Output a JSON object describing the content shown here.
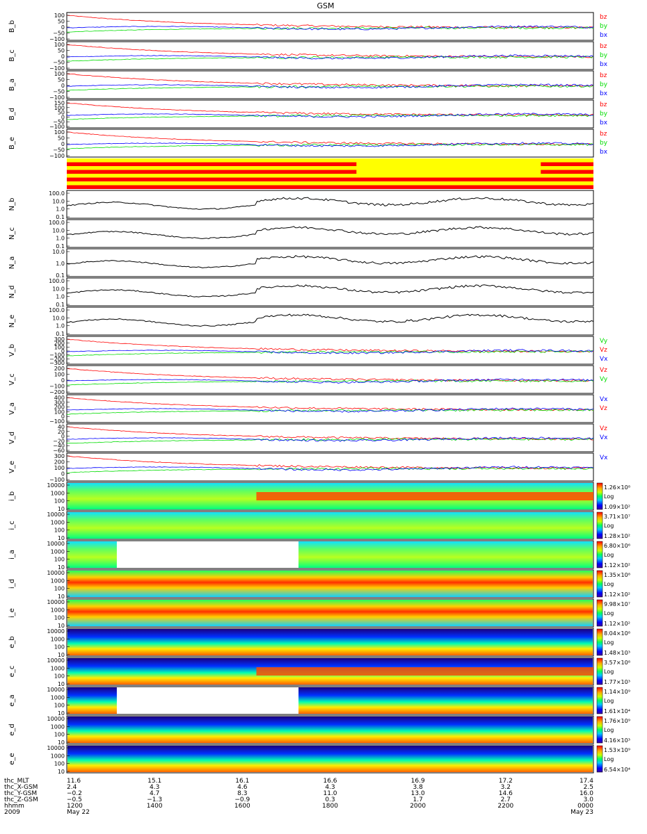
{
  "title": "GSM",
  "colors": {
    "bx": "#0000ff",
    "by": "#00dd00",
    "bz": "#ff0000",
    "flag_a": "#ffff00",
    "flag_b": "#ff0000"
  },
  "chart_data": {
    "type": "line",
    "x_range": [
      "2009-05-22 12:00",
      "2009-05-23 00:00"
    ],
    "panels": [
      {
        "label": "B_b",
        "kind": "vec3",
        "ticks": [
          "100",
          "50",
          "0",
          "−50",
          "−100"
        ],
        "legend": [
          "bz",
          "by",
          "bx"
        ]
      },
      {
        "label": "B_c",
        "kind": "vec3",
        "ticks": [
          "100",
          "50",
          "0",
          "−50",
          "−100"
        ],
        "legend": [
          "bz",
          "by",
          "bx"
        ]
      },
      {
        "label": "B_a",
        "kind": "vec3",
        "ticks": [
          "100",
          "50",
          "0",
          "−50",
          "−100"
        ],
        "legend": [
          "bz",
          "by",
          "bx"
        ]
      },
      {
        "label": "B_d",
        "kind": "vec3",
        "ticks": [
          "150",
          "100",
          "50",
          "0",
          "−50",
          "−100"
        ],
        "legend": [
          "bz",
          "by",
          "bx"
        ]
      },
      {
        "label": "B_e",
        "kind": "vec3",
        "ticks": [
          "100",
          "50",
          "0",
          "−50",
          "−100"
        ],
        "legend": [
          "bz",
          "by",
          "bx"
        ]
      },
      {
        "label": "",
        "kind": "flags"
      },
      {
        "label": "N_b",
        "kind": "density",
        "ticks": [
          "100.0",
          "10.0",
          "1.0",
          "0.1"
        ]
      },
      {
        "label": "N_c",
        "kind": "density",
        "ticks": [
          "100.0",
          "10.0",
          "1.0",
          "0.1"
        ]
      },
      {
        "label": "N_a",
        "kind": "density",
        "ticks": [
          "10.0",
          "1.0",
          "0.1"
        ]
      },
      {
        "label": "N_d",
        "kind": "density",
        "ticks": [
          "100.0",
          "10.0",
          "1.0",
          "0.1"
        ]
      },
      {
        "label": "N_e",
        "kind": "density",
        "ticks": [
          "100.0",
          "10.0",
          "1.0",
          "0.1"
        ]
      },
      {
        "label": "V_b",
        "kind": "vel",
        "ticks": [
          "300",
          "200",
          "100",
          "0",
          "−100",
          "−200",
          "−300"
        ],
        "legend": [
          "Vy",
          "Vz",
          "Vx"
        ]
      },
      {
        "label": "V_c",
        "kind": "vel",
        "ticks": [
          "200",
          "100",
          "0",
          "−100",
          "−200"
        ],
        "legend": [
          "Vz",
          "Vy"
        ]
      },
      {
        "label": "V_a",
        "kind": "vel",
        "ticks": [
          "400",
          "300",
          "200",
          "100",
          "0",
          "−100"
        ],
        "legend": [
          "Vx",
          "Vz"
        ]
      },
      {
        "label": "V_d",
        "kind": "vel",
        "ticks": [
          "40",
          "20",
          "0",
          "−20",
          "−40",
          "−60"
        ],
        "legend": [
          "Vz",
          "Vx"
        ]
      },
      {
        "label": "V_e",
        "kind": "vel",
        "ticks": [
          "300",
          "200",
          "100",
          "0",
          "−100"
        ],
        "legend": [
          "Vx"
        ]
      },
      {
        "label": "i_b",
        "kind": "spec",
        "ticks": [
          "10000",
          "1000",
          "100",
          "10"
        ],
        "cbar": [
          "1.26×10⁸",
          "1.09×10²"
        ]
      },
      {
        "label": "i_c",
        "kind": "spec",
        "ticks": [
          "10000",
          "1000",
          "100",
          "10"
        ],
        "cbar": [
          "3.71×10⁷",
          "1.28×10²"
        ]
      },
      {
        "label": "i_a",
        "kind": "spec",
        "ticks": [
          "10000",
          "1000",
          "100",
          "10"
        ],
        "cbar": [
          "6.80×10⁶",
          "1.12×10²"
        ]
      },
      {
        "label": "i_d",
        "kind": "spec",
        "ticks": [
          "10000",
          "1000",
          "100",
          "10"
        ],
        "cbar": [
          "1.35×10⁸",
          "1.12×10²"
        ]
      },
      {
        "label": "i_e",
        "kind": "spec",
        "ticks": [
          "10000",
          "1000",
          "100",
          "10"
        ],
        "cbar": [
          "9.98×10⁷",
          "1.12×10²"
        ]
      },
      {
        "label": "e_b",
        "kind": "spec",
        "ticks": [
          "10000",
          "1000",
          "100",
          "10"
        ],
        "cbar": [
          "8.04×10⁸",
          "1.48×10³"
        ]
      },
      {
        "label": "e_c",
        "kind": "spec",
        "ticks": [
          "10000",
          "1000",
          "100",
          "10"
        ],
        "cbar": [
          "3.57×10⁸",
          "1.77×10³"
        ]
      },
      {
        "label": "e_a",
        "kind": "spec",
        "ticks": [
          "10000",
          "1000",
          "100",
          "10"
        ],
        "cbar": [
          "1.14×10⁹",
          "1.61×10⁴"
        ]
      },
      {
        "label": "e_d",
        "kind": "spec",
        "ticks": [
          "10000",
          "1000",
          "100",
          "10"
        ],
        "cbar": [
          "1.76×10⁹",
          "4.16×10³"
        ]
      },
      {
        "label": "e_e",
        "kind": "spec",
        "ticks": [
          "10000",
          "1000",
          "100",
          "10"
        ],
        "cbar": [
          "1.53×10⁹",
          "6.54×10⁴"
        ]
      }
    ],
    "cbar_scale": "Log",
    "footer": {
      "row_labels": [
        "thc_MLT",
        "thc_X-GSM",
        "thc_Y-GSM",
        "thc_Z-GSM",
        "hhmm",
        "2009"
      ],
      "columns": [
        [
          "11.6",
          "2.4",
          "−0.2",
          "−0.5",
          "1200",
          "May 22"
        ],
        [
          "15.1",
          "4.3",
          "4.7",
          "−1.3",
          "1400",
          ""
        ],
        [
          "16.1",
          "4.6",
          "8.3",
          "−0.9",
          "1600",
          ""
        ],
        [
          "16.6",
          "4.3",
          "11.0",
          "0.3",
          "1800",
          ""
        ],
        [
          "16.9",
          "3.8",
          "13.0",
          "1.7",
          "2000",
          ""
        ],
        [
          "17.2",
          "3.2",
          "14.6",
          "2.7",
          "2200",
          ""
        ],
        [
          "17.4",
          "2.5",
          "16.0",
          "3.0",
          "0000",
          "May 23"
        ]
      ]
    }
  }
}
